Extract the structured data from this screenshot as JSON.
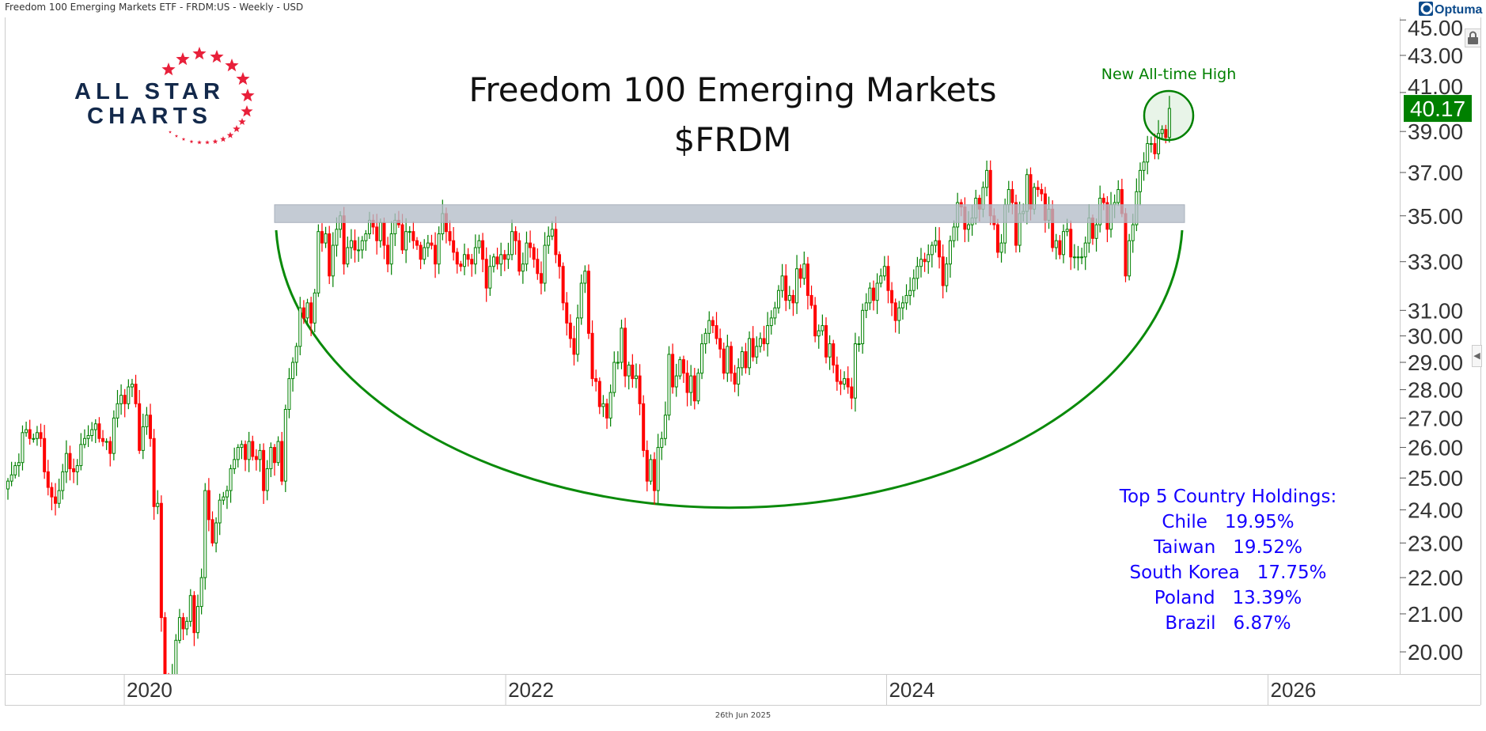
{
  "header": {
    "title": "Freedom 100 Emerging Markets ETF - FRDM:US - Weekly - USD"
  },
  "logo": {
    "line1": "ALL STAR",
    "line2": "CHARTS",
    "brand_colors": {
      "text": "#13294b",
      "stars": "#e8203a"
    }
  },
  "footer": {
    "date": "26th Jun 2025"
  },
  "vendor": {
    "name": "Optuma"
  },
  "annotations": {
    "title_line1": "Freedom 100 Emerging Markets",
    "title_line2": "$FRDM",
    "ath_label": "New All-time High",
    "holdings_title": "Top 5 Country Holdings:",
    "holdings": [
      {
        "country": "Chile",
        "pct": "19.95%"
      },
      {
        "country": "Taiwan",
        "pct": "19.52%"
      },
      {
        "country": "South Korea",
        "pct": "17.75%"
      },
      {
        "country": "Poland",
        "pct": "13.39%"
      },
      {
        "country": "Brazil",
        "pct": "6.87%"
      }
    ]
  },
  "icons": {
    "lock": "lock-icon",
    "collapse": "chevron-left-icon",
    "logo": "optuma-logo-icon"
  },
  "chart_data": {
    "type": "candlestick",
    "frequency": "weekly",
    "currency": "USD",
    "last_date": "2025-06-26",
    "last_price": "40.17",
    "y_scale": "log",
    "ylim": [
      19.46,
      45
    ],
    "y_ticks": [
      "20.00",
      "21.00",
      "22.00",
      "23.00",
      "24.00",
      "25.00",
      "26.00",
      "27.00",
      "28.00",
      "29.00",
      "30.00",
      "31.00",
      "33.00",
      "35.00",
      "37.00",
      "39.00",
      "41.00",
      "43.00",
      "45.00"
    ],
    "x_ticks": [
      "2020",
      "2022",
      "2024",
      "2026"
    ],
    "grid": false,
    "resistance_zone": [
      34.7,
      35.5
    ],
    "colors": {
      "up": "#008000",
      "down": "#ff0000",
      "zone": "#b4bcc8",
      "arc": "#0a8a0a",
      "price_label": "#008000",
      "holdings_text": "#1400ff"
    },
    "closes": [
      24.9,
      25.1,
      25.4,
      25.5,
      26.5,
      26.6,
      26.3,
      26.3,
      26.5,
      26.3,
      25.2,
      24.7,
      24.4,
      24.2,
      24.6,
      25.2,
      25.8,
      25.3,
      25.2,
      25.4,
      26.1,
      26.3,
      26.4,
      26.6,
      26.8,
      26.3,
      26.2,
      26.2,
      25.8,
      27.0,
      27.5,
      27.8,
      27.5,
      28.1,
      28.2,
      27.5,
      25.9,
      26.7,
      27.1,
      26.3,
      24.1,
      24.2,
      20.9,
      19.2,
      19.0,
      19.4,
      20.3,
      20.9,
      20.6,
      20.8,
      21.5,
      20.5,
      21.2,
      22.0,
      24.6,
      23.7,
      23.0,
      23.6,
      24.3,
      24.4,
      24.6,
      25.3,
      25.6,
      26.0,
      26.1,
      25.6,
      26.2,
      25.7,
      25.6,
      25.9,
      24.6,
      25.3,
      26.0,
      25.5,
      26.2,
      24.9,
      27.3,
      28.4,
      29.0,
      29.6,
      31.1,
      30.7,
      31.3,
      30.5,
      31.7,
      34.3,
      33.8,
      34.2,
      32.4,
      33.7,
      34.4,
      35.0,
      32.9,
      33.6,
      33.9,
      33.5,
      33.5,
      33.9,
      34.2,
      34.8,
      34.5,
      33.9,
      34.7,
      33.7,
      32.9,
      34.2,
      34.8,
      34.6,
      33.5,
      34.3,
      34.3,
      33.9,
      33.7,
      33.1,
      33.6,
      33.8,
      33.7,
      32.9,
      34.2,
      35.1,
      34.3,
      33.9,
      33.4,
      32.9,
      32.8,
      33.3,
      33.1,
      32.9,
      33.6,
      33.9,
      33.1,
      31.9,
      32.8,
      33.2,
      32.9,
      33.3,
      33.1,
      33.3,
      34.3,
      33.9,
      32.6,
      32.9,
      33.8,
      33.6,
      33.1,
      32.5,
      32.1,
      33.7,
      34.1,
      34.4,
      33.3,
      32.8,
      31.3,
      30.5,
      29.9,
      29.3,
      30.7,
      32.1,
      32.6,
      30.1,
      28.4,
      28.3,
      27.4,
      27.5,
      27.0,
      27.9,
      29.0,
      29.0,
      30.3,
      28.5,
      28.9,
      28.4,
      28.5,
      27.5,
      25.9,
      24.9,
      25.6,
      24.6,
      26.0,
      26.3,
      27.1,
      29.3,
      28.1,
      28.5,
      29.1,
      28.6,
      27.9,
      28.5,
      27.6,
      28.6,
      29.7,
      30.1,
      30.6,
      30.4,
      29.9,
      29.5,
      28.6,
      29.6,
      28.6,
      28.2,
      28.8,
      29.4,
      28.8,
      29.9,
      29.2,
      29.6,
      29.9,
      29.7,
      30.4,
      30.7,
      31.1,
      31.8,
      32.4,
      31.4,
      31.6,
      31.3,
      32.7,
      32.3,
      32.9,
      31.6,
      31.2,
      30.0,
      30.2,
      30.4,
      29.2,
      29.7,
      28.9,
      28.3,
      28.2,
      28.4,
      28.1,
      27.7,
      29.7,
      29.7,
      31.0,
      31.3,
      31.9,
      31.4,
      32.1,
      32.4,
      32.8,
      31.8,
      31.3,
      30.6,
      31.1,
      31.3,
      31.6,
      31.8,
      32.3,
      32.8,
      33.1,
      33.0,
      33.3,
      33.7,
      33.9,
      33.2,
      32.0,
      32.9,
      33.9,
      34.5,
      35.6,
      35.4,
      34.4,
      34.6,
      34.9,
      35.8,
      35.3,
      36.3,
      37.1,
      35.0,
      34.6,
      33.4,
      33.8,
      35.5,
      36.2,
      35.6,
      33.7,
      35.1,
      35.2,
      36.9,
      35.3,
      36.3,
      36.2,
      36.0,
      34.8,
      35.3,
      33.6,
      33.9,
      33.3,
      34.3,
      34.4,
      33.2,
      33.2,
      33.2,
      33.2,
      33.8,
      34.9,
      34.0,
      34.6,
      35.8,
      35.6,
      34.4,
      35.5,
      35.6,
      36.2,
      35.1,
      32.4,
      33.9,
      34.6,
      36.1,
      37.1,
      37.5,
      38.4,
      38.4,
      37.9,
      38.9,
      39.1,
      38.7,
      40.17
    ]
  }
}
